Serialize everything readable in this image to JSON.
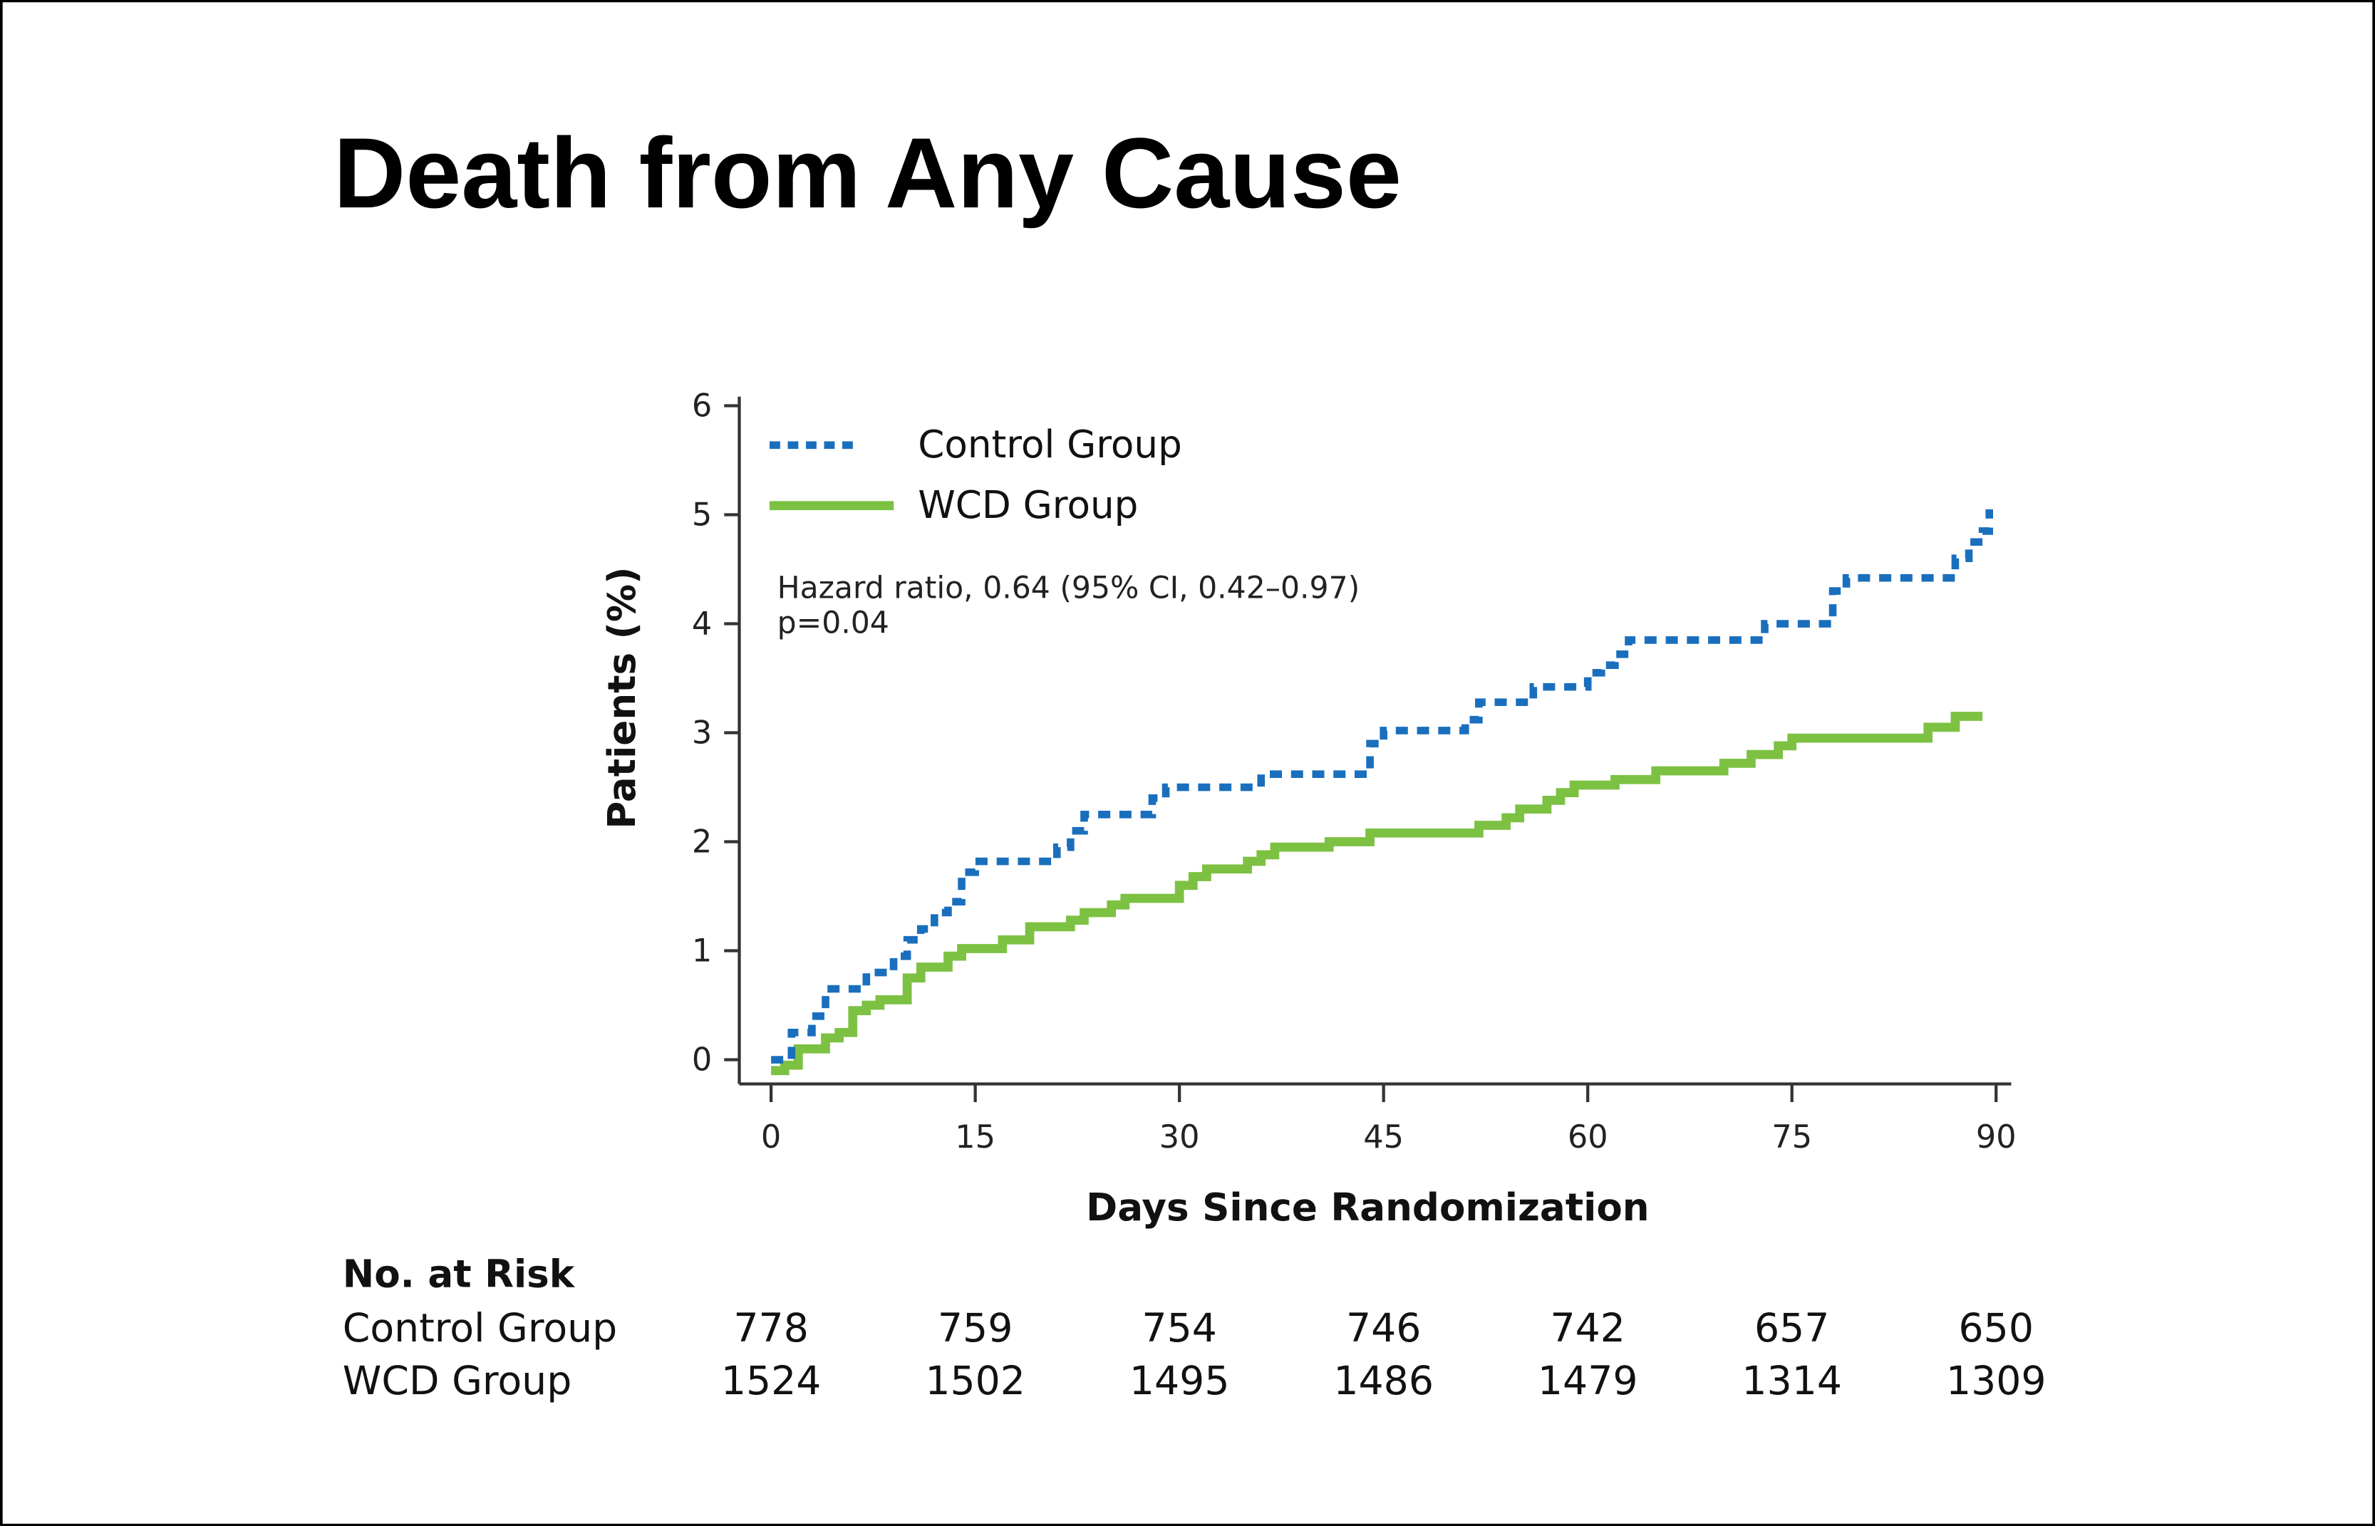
{
  "title": "Death from Any Cause",
  "colors": {
    "title": "#0b72c6",
    "control": "#1a6fbd",
    "wcd": "#7dc143",
    "axis": "#333333"
  },
  "chart_data": {
    "type": "line",
    "step": true,
    "title": "Death from Any Cause",
    "xlabel": "Days Since Randomization",
    "ylabel": "Patients (%)",
    "xlim": [
      0,
      90
    ],
    "ylim": [
      0,
      6
    ],
    "xticks": [
      "0",
      "15",
      "30",
      "45",
      "60",
      "75",
      "90"
    ],
    "yticks": [
      "0",
      "1",
      "2",
      "3",
      "4",
      "5",
      "6"
    ],
    "grid": false,
    "legend_position": "top-left",
    "annotation": [
      "Hazard ratio, 0.64 (95% CI, 0.42–0.97)",
      "p=0.04"
    ],
    "series": [
      {
        "name": "Control Group",
        "style": "dashed",
        "x": [
          0,
          1.5,
          3,
          4,
          7,
          9,
          10,
          11,
          12,
          13,
          14,
          15,
          21,
          22,
          23,
          28,
          29,
          36,
          44,
          45,
          51,
          52,
          56,
          60,
          61,
          62,
          63,
          73,
          78,
          79,
          87,
          88,
          89,
          89.5
        ],
        "y": [
          0,
          0.25,
          0.4,
          0.65,
          0.8,
          0.95,
          1.1,
          1.2,
          1.35,
          1.45,
          1.72,
          1.82,
          1.95,
          2.1,
          2.25,
          2.4,
          2.5,
          2.62,
          2.9,
          3.02,
          3.12,
          3.28,
          3.42,
          3.55,
          3.62,
          3.72,
          3.85,
          4.0,
          4.3,
          4.42,
          4.6,
          4.75,
          4.85,
          5.05
        ]
      },
      {
        "name": "WCD Group",
        "style": "solid",
        "x": [
          0,
          1,
          2,
          4,
          5,
          6,
          7,
          8,
          10,
          11,
          13,
          14,
          17,
          19,
          22,
          23,
          25,
          26,
          30,
          31,
          32,
          35,
          36,
          37,
          41,
          44,
          52,
          54,
          55,
          57,
          58,
          59,
          62,
          65,
          70,
          72,
          74,
          75,
          85,
          87,
          89
        ],
        "y": [
          -0.1,
          -0.05,
          0.1,
          0.2,
          0.25,
          0.45,
          0.5,
          0.55,
          0.75,
          0.85,
          0.95,
          1.02,
          1.1,
          1.22,
          1.28,
          1.35,
          1.42,
          1.48,
          1.6,
          1.68,
          1.75,
          1.82,
          1.88,
          1.95,
          2.0,
          2.08,
          2.15,
          2.22,
          2.3,
          2.38,
          2.45,
          2.52,
          2.57,
          2.65,
          2.72,
          2.8,
          2.88,
          2.95,
          3.05,
          3.15,
          3.15
        ]
      }
    ]
  },
  "risk_table": {
    "heading": "No. at Risk",
    "rows": [
      {
        "label": "Control Group",
        "values": [
          "778",
          "759",
          "754",
          "746",
          "742",
          "657",
          "650"
        ]
      },
      {
        "label": "WCD Group",
        "values": [
          "1524",
          "1502",
          "1495",
          "1486",
          "1479",
          "1314",
          "1309"
        ]
      }
    ]
  }
}
